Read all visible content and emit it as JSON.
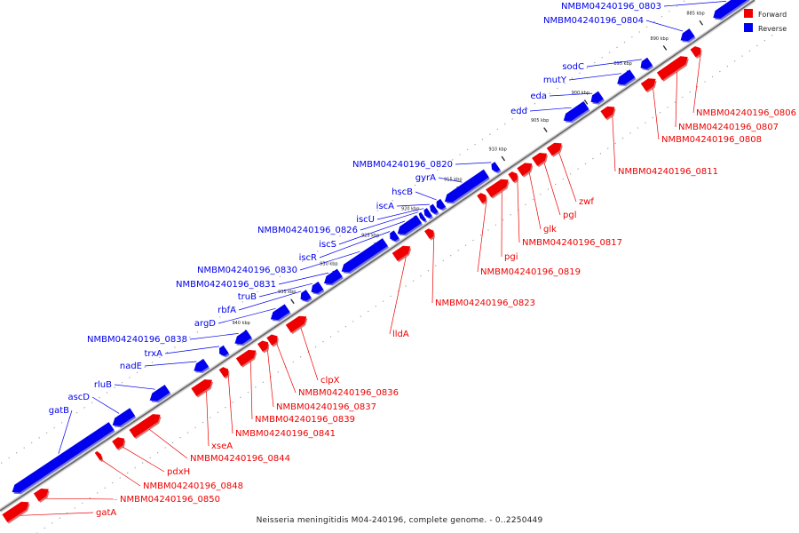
{
  "colors": {
    "forward": "#ee0000",
    "reverse": "#0000ee",
    "backbone": "#666666"
  },
  "legend": {
    "forward": "Forward",
    "reverse": "Reverse"
  },
  "caption": "Neisseria meningitidis M04-240196, complete genome. - 0..2250449",
  "ticks": [
    "885 kbp",
    "890 kbp",
    "895 kbp",
    "900 kbp",
    "905 kbp",
    "910 kbp",
    "915 kbp",
    "920 kbp",
    "925 kbp",
    "930 kbp",
    "935 kbp",
    "940 kbp"
  ],
  "genes": [
    {
      "name": "NMBM04240196_0803",
      "strand": "reverse"
    },
    {
      "name": "NMBM04240196_0804",
      "strand": "reverse"
    },
    {
      "name": "sodC",
      "strand": "reverse"
    },
    {
      "name": "mutY",
      "strand": "reverse"
    },
    {
      "name": "eda",
      "strand": "reverse"
    },
    {
      "name": "edd",
      "strand": "reverse"
    },
    {
      "name": "NMBM04240196_0820",
      "strand": "reverse"
    },
    {
      "name": "gyrA",
      "strand": "reverse"
    },
    {
      "name": "hscB",
      "strand": "reverse"
    },
    {
      "name": "iscA",
      "strand": "reverse"
    },
    {
      "name": "iscU",
      "strand": "reverse"
    },
    {
      "name": "NMBM04240196_0826",
      "strand": "reverse"
    },
    {
      "name": "iscS",
      "strand": "reverse"
    },
    {
      "name": "iscR",
      "strand": "reverse"
    },
    {
      "name": "NMBM04240196_0830",
      "strand": "reverse"
    },
    {
      "name": "NMBM04240196_0831",
      "strand": "reverse"
    },
    {
      "name": "truB",
      "strand": "reverse"
    },
    {
      "name": "rbfA",
      "strand": "reverse"
    },
    {
      "name": "argD",
      "strand": "reverse"
    },
    {
      "name": "NMBM04240196_0838",
      "strand": "reverse"
    },
    {
      "name": "trxA",
      "strand": "reverse"
    },
    {
      "name": "nadE",
      "strand": "reverse"
    },
    {
      "name": "rluB",
      "strand": "reverse"
    },
    {
      "name": "ascD",
      "strand": "reverse"
    },
    {
      "name": "gatB",
      "strand": "reverse"
    },
    {
      "name": "NMBM04240196_0806",
      "strand": "forward"
    },
    {
      "name": "NMBM04240196_0807",
      "strand": "forward"
    },
    {
      "name": "NMBM04240196_0808",
      "strand": "forward"
    },
    {
      "name": "NMBM04240196_0811",
      "strand": "forward"
    },
    {
      "name": "zwf",
      "strand": "forward"
    },
    {
      "name": "pgl",
      "strand": "forward"
    },
    {
      "name": "glk",
      "strand": "forward"
    },
    {
      "name": "NMBM04240196_0817",
      "strand": "forward"
    },
    {
      "name": "pgi",
      "strand": "forward"
    },
    {
      "name": "NMBM04240196_0819",
      "strand": "forward"
    },
    {
      "name": "NMBM04240196_0823",
      "strand": "forward"
    },
    {
      "name": "lldA",
      "strand": "forward"
    },
    {
      "name": "clpX",
      "strand": "forward"
    },
    {
      "name": "NMBM04240196_0836",
      "strand": "forward"
    },
    {
      "name": "NMBM04240196_0837",
      "strand": "forward"
    },
    {
      "name": "NMBM04240196_0839",
      "strand": "forward"
    },
    {
      "name": "NMBM04240196_0841",
      "strand": "forward"
    },
    {
      "name": "xseA",
      "strand": "forward"
    },
    {
      "name": "NMBM04240196_0844",
      "strand": "forward"
    },
    {
      "name": "pdxH",
      "strand": "forward"
    },
    {
      "name": "NMBM04240196_0848",
      "strand": "forward"
    },
    {
      "name": "NMBM04240196_0850",
      "strand": "forward"
    },
    {
      "name": "gatA",
      "strand": "forward"
    }
  ]
}
